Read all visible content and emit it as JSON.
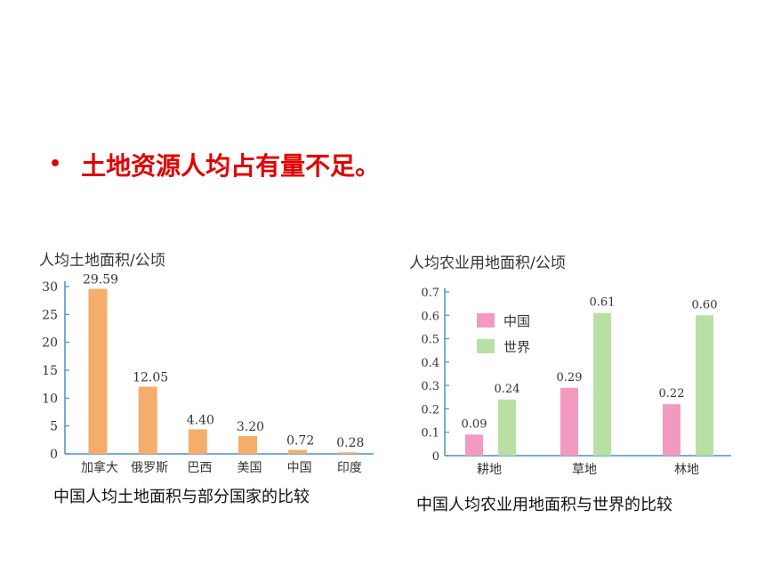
{
  "bullet": {
    "symbol": "•",
    "text": "土地资源人均占有量不足。"
  },
  "chart_data": [
    {
      "type": "bar",
      "title": "人均土地面积/公顷",
      "categories": [
        "加拿大",
        "俄罗斯",
        "巴西",
        "美国",
        "中国",
        "印度"
      ],
      "values": [
        29.59,
        12.05,
        4.4,
        3.2,
        0.72,
        0.28
      ],
      "value_labels": [
        "29.59",
        "12.05",
        "4.40",
        "3.20",
        "0.72",
        "0.28"
      ],
      "yticks": [
        0,
        5,
        10,
        15,
        20,
        25,
        30
      ],
      "ylim": [
        0,
        30
      ],
      "color": "#f5ad6b",
      "caption": "中国人均土地面积与部分国家的比较"
    },
    {
      "type": "bar",
      "title": "人均农业用地面积/公顷",
      "categories": [
        "耕地",
        "草地",
        "林地"
      ],
      "series": [
        {
          "name": "中国",
          "values": [
            0.09,
            0.29,
            0.22
          ],
          "value_labels": [
            "0.09",
            "0.29",
            "0.22"
          ],
          "color": "#f29ac0"
        },
        {
          "name": "世界",
          "values": [
            0.24,
            0.61,
            0.6
          ],
          "value_labels": [
            "0.24",
            "0.61",
            "0.60"
          ],
          "color": "#b8e0a4"
        }
      ],
      "yticks": [
        "0",
        "0.1",
        "0.2",
        "0.3",
        "0.4",
        "0.5",
        "0.6",
        "0.7"
      ],
      "ylim": [
        0,
        0.7
      ],
      "legend": "top-left",
      "caption": "中国人均农业用地面积与世界的比较"
    }
  ]
}
